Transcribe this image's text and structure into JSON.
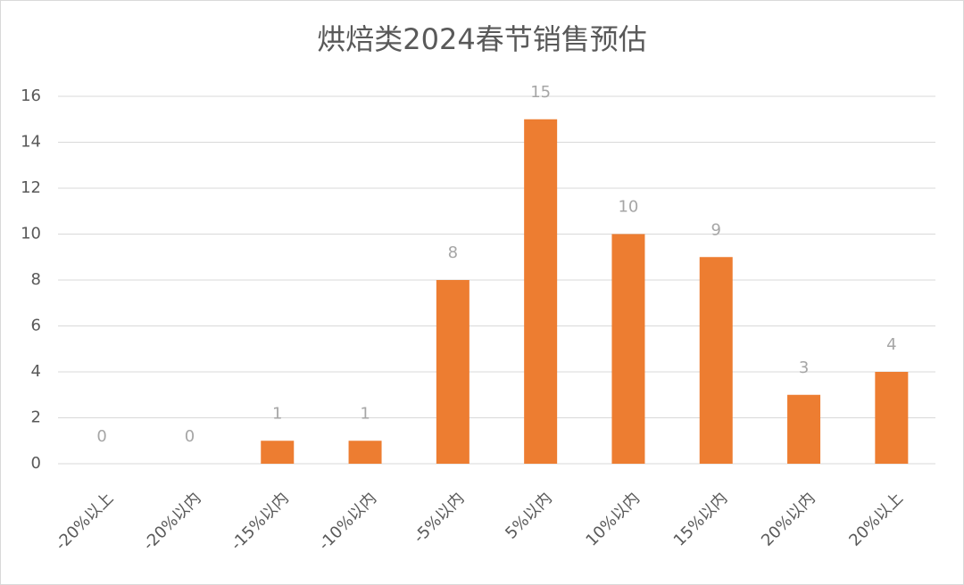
{
  "chart_data": {
    "type": "bar",
    "title": "烘焙类2024春节销售预估",
    "categories": [
      "-20%以上",
      "-20%以内",
      "-15%以内",
      "-10%以内",
      "-5%以内",
      "5%以内",
      "10%以内",
      "15%以内",
      "20%以内",
      "20%以上"
    ],
    "values": [
      0,
      0,
      1,
      1,
      8,
      15,
      10,
      9,
      3,
      4
    ],
    "color": "#ed7d31",
    "ylim": [
      0,
      16
    ],
    "yticks": [
      0,
      2,
      4,
      6,
      8,
      10,
      12,
      14,
      16
    ],
    "grid": true
  }
}
